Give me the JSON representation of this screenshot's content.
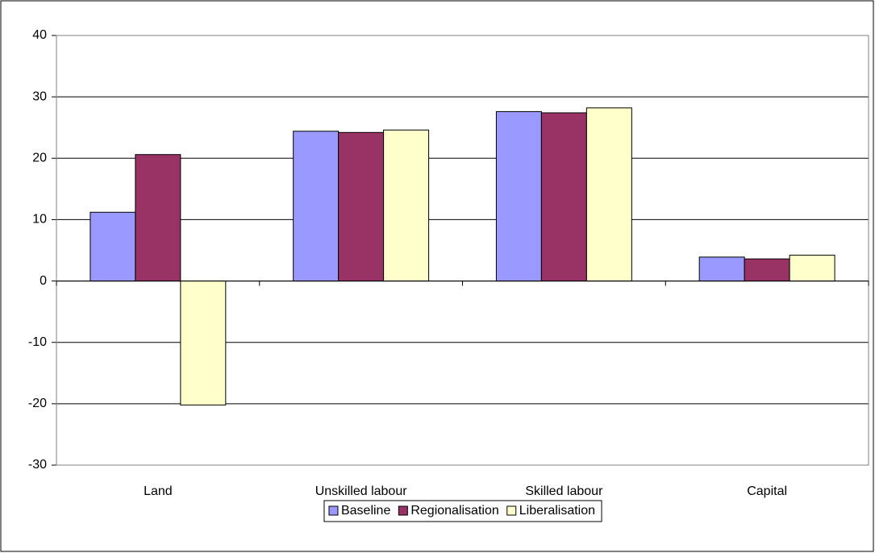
{
  "chart_data": {
    "type": "bar",
    "categories": [
      "Land",
      "Unskilled labour",
      "Skilled labour",
      "Capital"
    ],
    "series": [
      {
        "name": "Baseline",
        "color": "#9999ff",
        "values": [
          11.2,
          24.4,
          27.6,
          3.9
        ]
      },
      {
        "name": "Regionalisation",
        "color": "#993366",
        "values": [
          20.6,
          24.2,
          27.4,
          3.6
        ]
      },
      {
        "name": "Liberalisation",
        "color": "#ffffcc",
        "values": [
          -20.2,
          24.6,
          28.2,
          4.2
        ]
      }
    ],
    "ylim": [
      -30,
      40
    ],
    "yticks": [
      -30,
      -20,
      -10,
      0,
      10,
      20,
      30,
      40
    ],
    "grid": true,
    "legend": "bottom"
  }
}
